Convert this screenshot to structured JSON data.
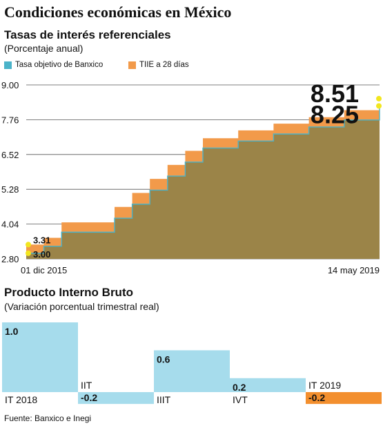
{
  "title": "Condiciones económicas en México",
  "chart_data": [
    {
      "type": "line",
      "title": "Tasas de interés referenciales",
      "subtitle": "(Porcentaje anual)",
      "step": true,
      "ylim": [
        2.8,
        9.0
      ],
      "yticks": [
        "9.00",
        "7.76",
        "6.52",
        "5.28",
        "4.04",
        "2.80"
      ],
      "x_start_label": "01 dic 2015",
      "x_end_label": "14 may  2019",
      "colors": {
        "banxico": "#4bb3c9",
        "tiie": "#f29a4a",
        "area": "#9b8448",
        "marker": "#f2e61f"
      },
      "series": [
        {
          "name": "Tasa objetivo de Banxico",
          "x": [
            0,
            0.05,
            0.1,
            0.25,
            0.3,
            0.35,
            0.4,
            0.45,
            0.5,
            0.6,
            0.7,
            0.8,
            0.9,
            1.0
          ],
          "values": [
            3.0,
            3.25,
            3.75,
            4.25,
            4.75,
            5.25,
            5.75,
            6.25,
            6.75,
            7.0,
            7.25,
            7.5,
            7.75,
            8.25
          ],
          "start_label": "3.00",
          "end_label": "8.25"
        },
        {
          "name": "TIIE a 28 días",
          "x": [
            0,
            0.05,
            0.1,
            0.25,
            0.3,
            0.35,
            0.4,
            0.45,
            0.5,
            0.6,
            0.7,
            0.8,
            0.9,
            1.0
          ],
          "values": [
            3.31,
            3.55,
            4.1,
            4.65,
            5.15,
            5.65,
            6.15,
            6.65,
            7.1,
            7.38,
            7.62,
            7.85,
            8.1,
            8.51
          ],
          "start_label": "3.31",
          "end_label": "8.51"
        }
      ]
    },
    {
      "type": "bar",
      "title": "Producto Interno Bruto",
      "subtitle": "(Variación porcentual trimestral real)",
      "categories": [
        "IT 2018",
        "IIT",
        "IIIT",
        "IVT",
        "IT 2019"
      ],
      "values": [
        1.0,
        -0.2,
        0.6,
        0.2,
        -0.2
      ],
      "value_labels": [
        "1.0",
        "-0.2",
        "0.6",
        "0.2",
        "-0.2"
      ],
      "colors": {
        "default": "#a6dcec",
        "highlight": "#f38f2e"
      },
      "highlight_index": 4
    }
  ],
  "source": "Fuente: Banxico e Inegi"
}
